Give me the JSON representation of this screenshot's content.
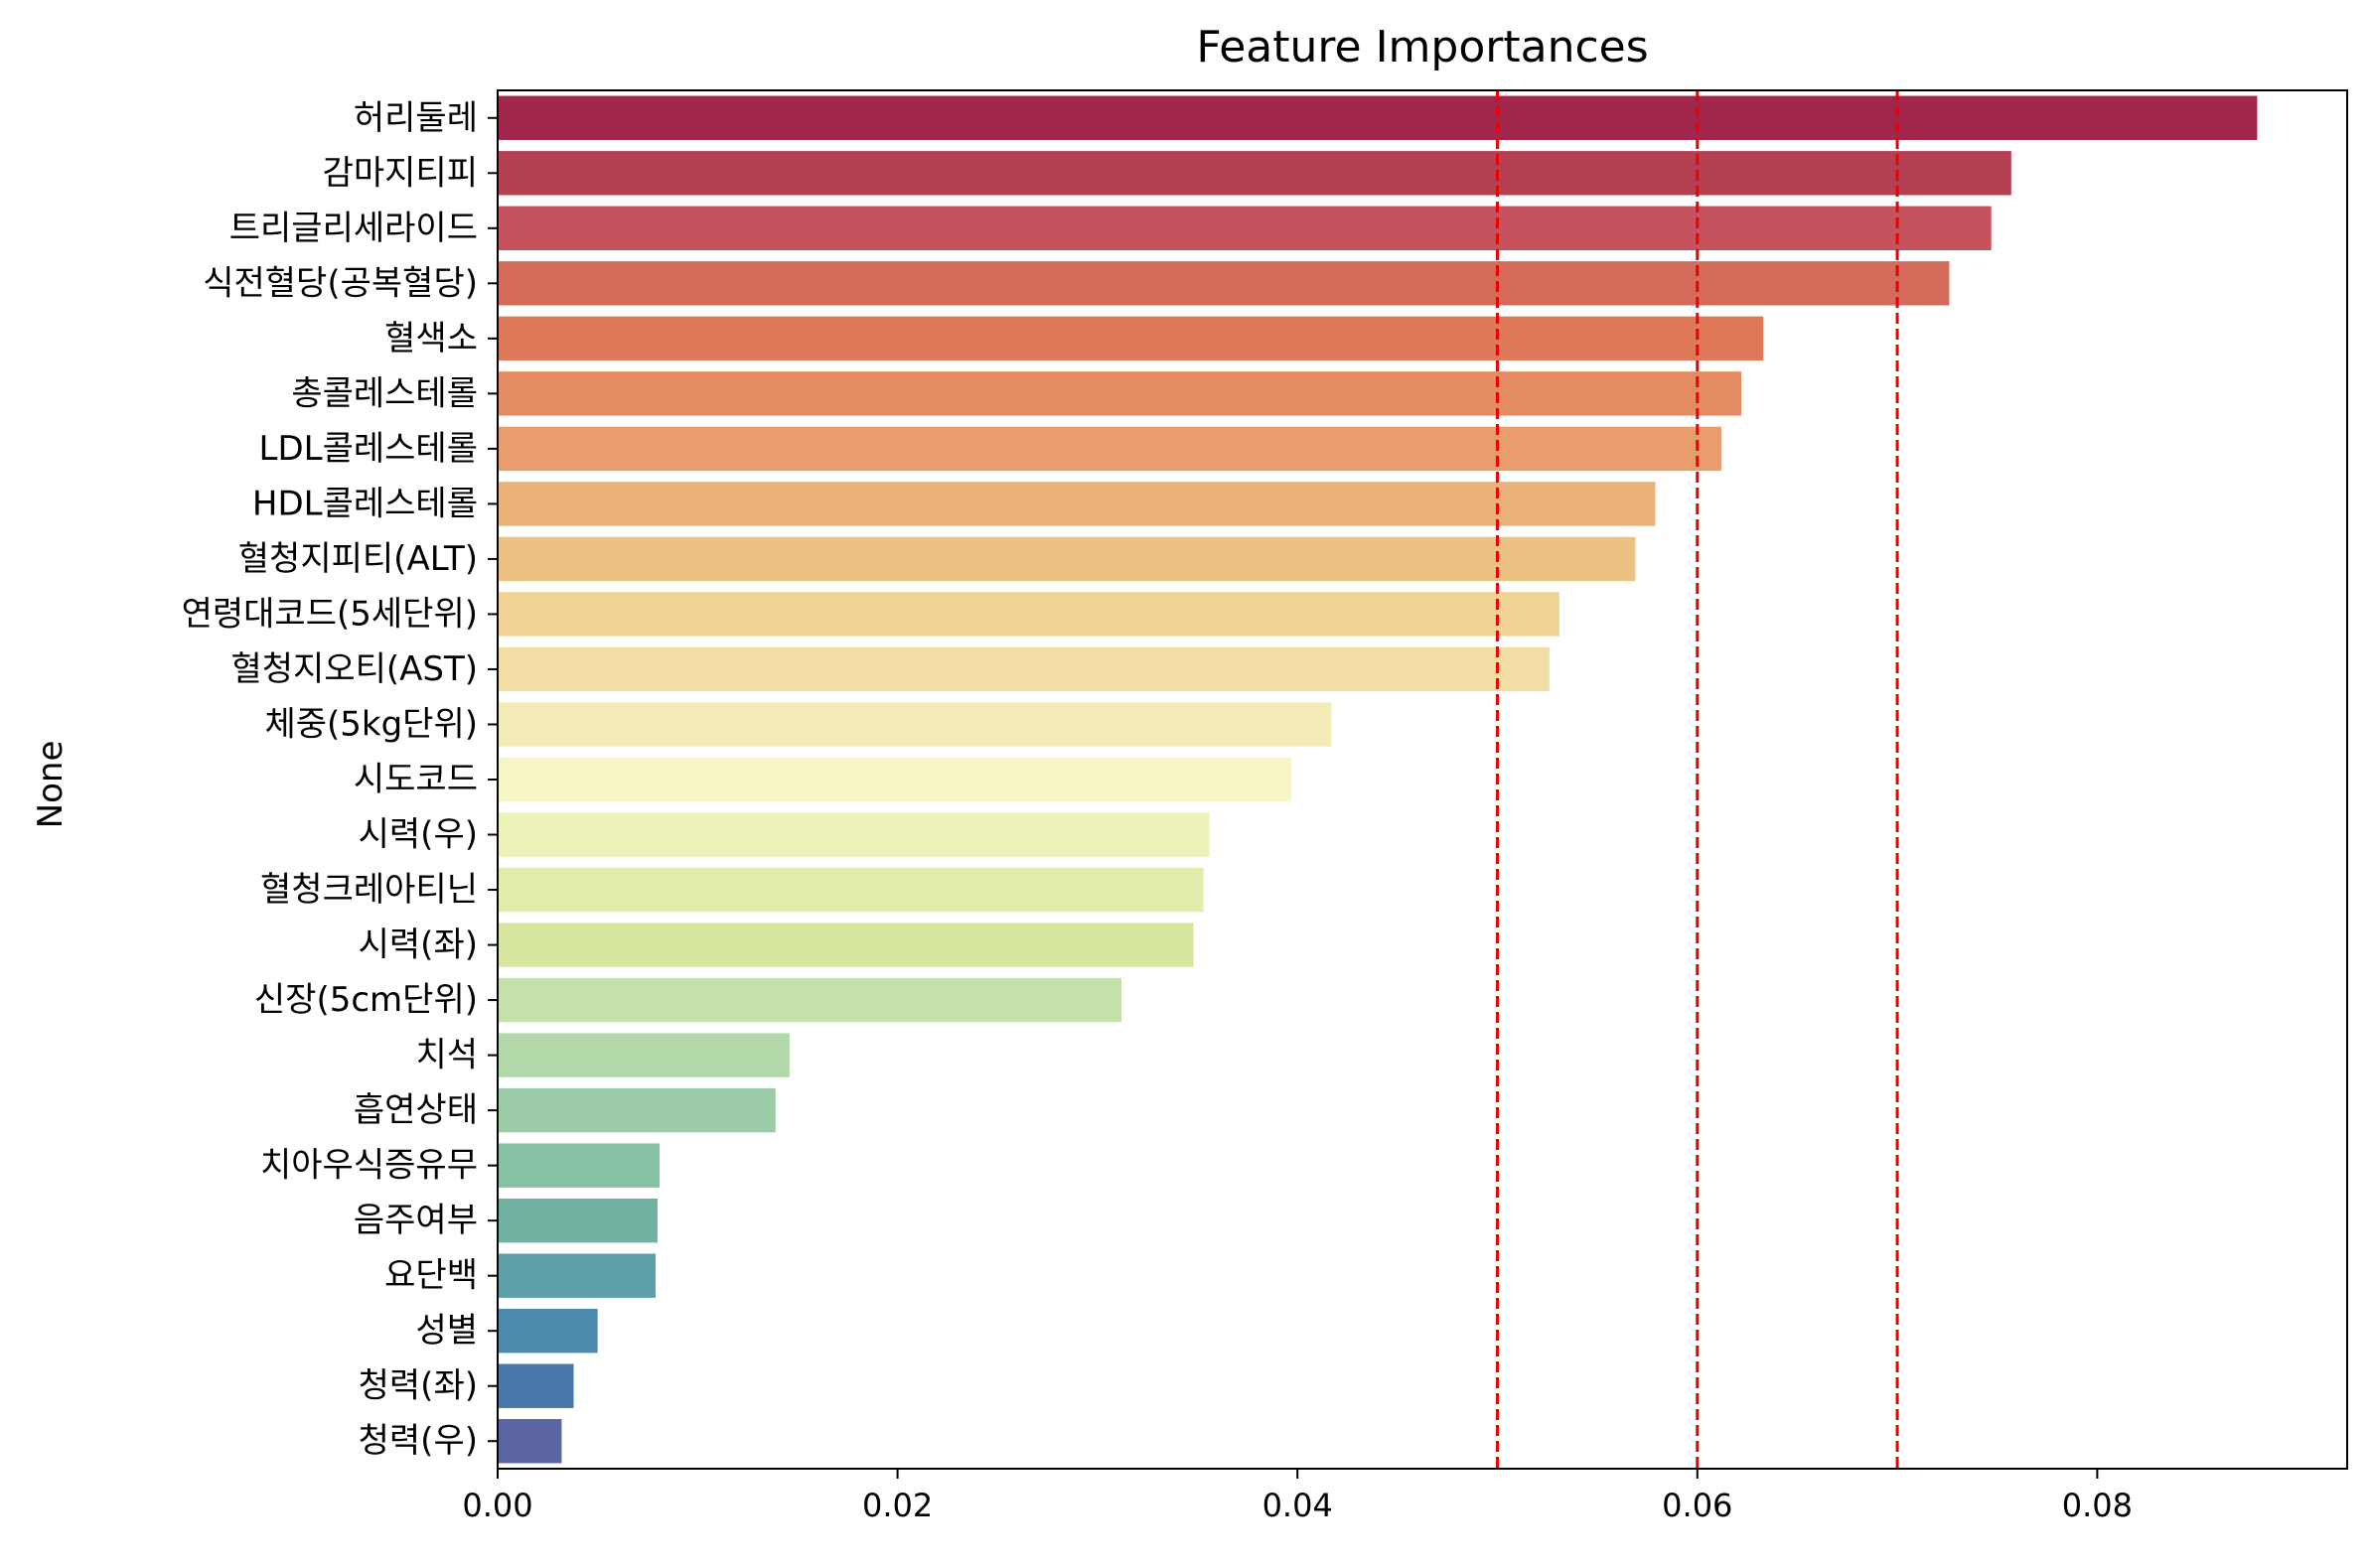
{
  "chart_data": {
    "type": "bar",
    "orientation": "horizontal",
    "title": "Feature Importances",
    "xlabel": "",
    "ylabel": "None",
    "xlim": [
      0,
      0.0925
    ],
    "xticks": [
      0.0,
      0.02,
      0.04,
      0.06,
      0.08
    ],
    "xtick_labels": [
      "0.00",
      "0.02",
      "0.04",
      "0.06",
      "0.08"
    ],
    "grid": false,
    "palette": "Spectral",
    "categories": [
      "허리둘레",
      "감마지티피",
      "트리글리세라이드",
      "식전혈당(공복혈당)",
      "혈색소",
      "총콜레스테롤",
      "LDL콜레스테롤",
      "HDL콜레스테롤",
      "혈청지피티(ALT)",
      "연령대코드(5세단위)",
      "혈청지오티(AST)",
      "체중(5kg단위)",
      "시도코드",
      "시력(우)",
      "혈청크레아티닌",
      "시력(좌)",
      "신장(5cm단위)",
      "치석",
      "흡연상태",
      "치아우식증유무",
      "음주여부",
      "요단백",
      "성별",
      "청력(좌)",
      "청력(우)"
    ],
    "values": [
      0.088,
      0.0757,
      0.0747,
      0.0726,
      0.0633,
      0.0622,
      0.0612,
      0.0579,
      0.0569,
      0.0531,
      0.0526,
      0.0417,
      0.0397,
      0.0356,
      0.0353,
      0.0348,
      0.0312,
      0.0146,
      0.0139,
      0.0081,
      0.008,
      0.0079,
      0.005,
      0.0038,
      0.0032
    ],
    "colors": [
      "#a2264b",
      "#b54052",
      "#c5525c",
      "#d46a5a",
      "#de795a",
      "#e58b62",
      "#e99d6c",
      "#eab178",
      "#ecc283",
      "#f1d495",
      "#f2dea5",
      "#f3ecb6",
      "#f7f6c7",
      "#edf3b8",
      "#e2ecab",
      "#d7e7a0",
      "#c5e0a9",
      "#b3d8aa",
      "#9dcca8",
      "#87c1a4",
      "#70b1a1",
      "#5d9fa7",
      "#4d8bae",
      "#4a77aa",
      "#5a65a2"
    ],
    "reference_lines": {
      "values": [
        0.05,
        0.06,
        0.07
      ],
      "color": "#ee0000",
      "style": "dashed"
    }
  }
}
